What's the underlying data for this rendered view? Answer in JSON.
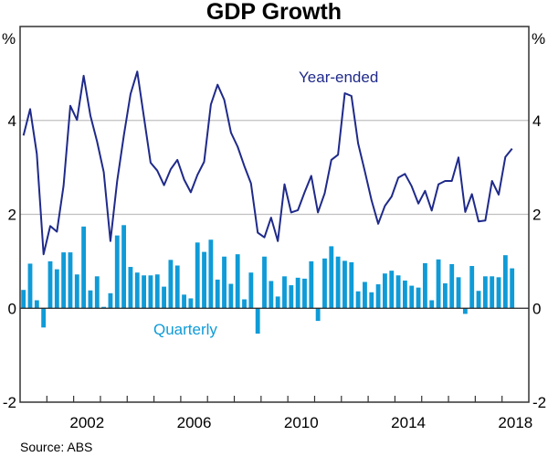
{
  "chart_data": {
    "type": "bar+line",
    "title": "GDP Growth",
    "ylabel_left": "%",
    "ylabel_right": "%",
    "ylim": [
      -2,
      6
    ],
    "yticks": [
      -2,
      0,
      2,
      4
    ],
    "gridlines": [
      2,
      4
    ],
    "x_start": "Mar 2000",
    "x_frequency": "quarterly",
    "xlim_years": [
      2000,
      2019
    ],
    "xtick_labels": [
      "2002",
      "2006",
      "2010",
      "2014",
      "2018"
    ],
    "source": "Source:   ABS",
    "colors": {
      "quarterly": "#0f9bd7",
      "year_ended": "#1f2a8a",
      "grid": "#c0c0c0",
      "axis": "#333333"
    },
    "series": [
      {
        "name": "Quarterly",
        "type": "bar",
        "label": "Quarterly",
        "values": [
          0.39,
          0.95,
          0.17,
          -0.41,
          1.0,
          0.83,
          1.19,
          1.19,
          0.72,
          1.74,
          0.38,
          0.68,
          0.03,
          0.32,
          1.55,
          1.77,
          0.88,
          0.76,
          0.7,
          0.7,
          0.72,
          0.46,
          1.03,
          0.91,
          0.29,
          0.21,
          1.4,
          1.2,
          1.46,
          0.61,
          1.1,
          0.52,
          1.15,
          0.19,
          0.76,
          -0.54,
          1.1,
          0.58,
          0.25,
          0.68,
          0.49,
          0.65,
          0.63,
          1.0,
          -0.27,
          1.06,
          1.32,
          1.1,
          1.01,
          0.98,
          0.36,
          0.56,
          0.34,
          0.51,
          0.74,
          0.8,
          0.7,
          0.59,
          0.48,
          0.44,
          0.96,
          0.17,
          1.04,
          0.53,
          0.94,
          0.66,
          -0.12,
          0.9,
          0.37,
          0.68,
          0.68,
          0.66,
          1.13,
          0.85
        ]
      },
      {
        "name": "Year-ended",
        "type": "line",
        "label": "Year-ended",
        "values": [
          3.68,
          4.24,
          3.29,
          1.15,
          1.75,
          1.63,
          2.61,
          4.31,
          4.01,
          4.95,
          4.1,
          3.55,
          2.9,
          1.43,
          2.71,
          3.68,
          4.56,
          5.04,
          4.07,
          3.1,
          2.93,
          2.62,
          2.96,
          3.16,
          2.74,
          2.47,
          2.84,
          3.12,
          4.34,
          4.76,
          4.44,
          3.74,
          3.44,
          3.03,
          2.66,
          1.61,
          1.51,
          1.93,
          1.43,
          2.64,
          2.04,
          2.09,
          2.47,
          2.82,
          2.04,
          2.45,
          3.16,
          3.27,
          4.58,
          4.52,
          3.51,
          2.92,
          2.3,
          1.8,
          2.18,
          2.38,
          2.78,
          2.86,
          2.6,
          2.23,
          2.5,
          2.08,
          2.64,
          2.71,
          2.71,
          3.21,
          2.05,
          2.43,
          1.85,
          1.87,
          2.71,
          2.42,
          3.22,
          3.4
        ]
      }
    ]
  }
}
